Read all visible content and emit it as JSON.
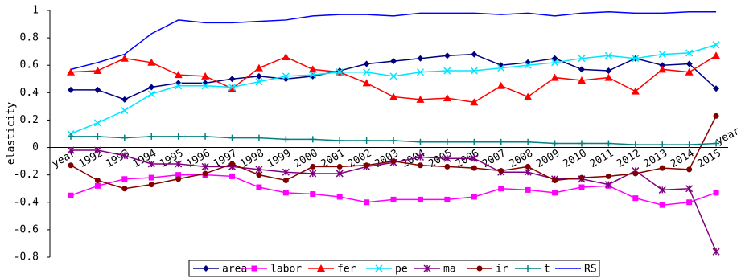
{
  "chart_data": {
    "type": "line",
    "y_label": "elasticity",
    "x_label": "year",
    "categories": [
      "year",
      "1992",
      "1993",
      "1994",
      "1995",
      "1996",
      "1997",
      "1998",
      "1999",
      "2000",
      "2001",
      "2002",
      "2003",
      "2004",
      "2005",
      "2006",
      "2007",
      "2008",
      "2009",
      "2010",
      "2011",
      "2012",
      "2013",
      "2014",
      "2015"
    ],
    "ylim": [
      -0.8,
      1
    ],
    "yticks": [
      -0.8,
      -0.6,
      -0.4,
      -0.2,
      0,
      0.2,
      0.4,
      0.6,
      0.8,
      1
    ],
    "series": [
      {
        "name": "area",
        "color": "#000080",
        "marker": "diamond",
        "values": [
          0.42,
          0.42,
          0.35,
          0.44,
          0.47,
          0.47,
          0.5,
          0.52,
          0.5,
          0.52,
          0.56,
          0.61,
          0.63,
          0.65,
          0.67,
          0.68,
          0.6,
          0.62,
          0.65,
          0.57,
          0.56,
          0.65,
          0.6,
          0.61,
          0.43
        ]
      },
      {
        "name": "labor",
        "color": "#ff00ff",
        "marker": "square",
        "values": [
          -0.35,
          -0.28,
          -0.23,
          -0.22,
          -0.2,
          -0.2,
          -0.21,
          -0.29,
          -0.33,
          -0.34,
          -0.36,
          -0.4,
          -0.38,
          -0.38,
          -0.38,
          -0.36,
          -0.3,
          -0.31,
          -0.33,
          -0.29,
          -0.28,
          -0.37,
          -0.42,
          -0.4,
          -0.33
        ]
      },
      {
        "name": "fer",
        "color": "#ff0000",
        "marker": "triangle",
        "values": [
          0.55,
          0.56,
          0.65,
          0.62,
          0.53,
          0.52,
          0.43,
          0.58,
          0.66,
          0.57,
          0.55,
          0.47,
          0.37,
          0.35,
          0.36,
          0.33,
          0.45,
          0.37,
          0.51,
          0.49,
          0.51,
          0.41,
          0.57,
          0.55,
          0.67
        ]
      },
      {
        "name": "pe",
        "color": "#00e5ff",
        "marker": "x",
        "values": [
          0.1,
          0.18,
          0.27,
          0.39,
          0.45,
          0.45,
          0.44,
          0.48,
          0.52,
          0.53,
          0.55,
          0.55,
          0.52,
          0.55,
          0.56,
          0.56,
          0.58,
          0.6,
          0.62,
          0.65,
          0.67,
          0.65,
          0.68,
          0.69,
          0.75
        ]
      },
      {
        "name": "ma",
        "color": "#800080",
        "marker": "star",
        "values": [
          -0.02,
          -0.02,
          -0.06,
          -0.12,
          -0.12,
          -0.14,
          -0.14,
          -0.16,
          -0.18,
          -0.19,
          -0.19,
          -0.14,
          -0.11,
          -0.07,
          -0.08,
          -0.08,
          -0.18,
          -0.18,
          -0.23,
          -0.23,
          -0.27,
          -0.17,
          -0.31,
          -0.3,
          -0.76
        ]
      },
      {
        "name": "ir",
        "color": "#800000",
        "marker": "circle",
        "values": [
          -0.13,
          -0.24,
          -0.3,
          -0.27,
          -0.23,
          -0.19,
          -0.12,
          -0.2,
          -0.24,
          -0.14,
          -0.14,
          -0.13,
          -0.1,
          -0.13,
          -0.14,
          -0.15,
          -0.17,
          -0.14,
          -0.24,
          -0.22,
          -0.21,
          -0.19,
          -0.15,
          -0.16,
          0.23
        ]
      },
      {
        "name": "t",
        "color": "#008080",
        "marker": "plus",
        "values": [
          0.08,
          0.08,
          0.07,
          0.08,
          0.08,
          0.08,
          0.07,
          0.07,
          0.06,
          0.06,
          0.05,
          0.05,
          0.05,
          0.04,
          0.04,
          0.04,
          0.04,
          0.04,
          0.03,
          0.03,
          0.03,
          0.02,
          0.02,
          0.02,
          0.03
        ]
      },
      {
        "name": "RS",
        "color": "#0000ff",
        "marker": "none",
        "values": [
          0.57,
          0.62,
          0.68,
          0.83,
          0.93,
          0.91,
          0.91,
          0.92,
          0.93,
          0.96,
          0.97,
          0.97,
          0.96,
          0.98,
          0.98,
          0.98,
          0.97,
          0.98,
          0.96,
          0.98,
          0.99,
          0.98,
          0.98,
          0.99,
          0.99
        ]
      }
    ]
  }
}
